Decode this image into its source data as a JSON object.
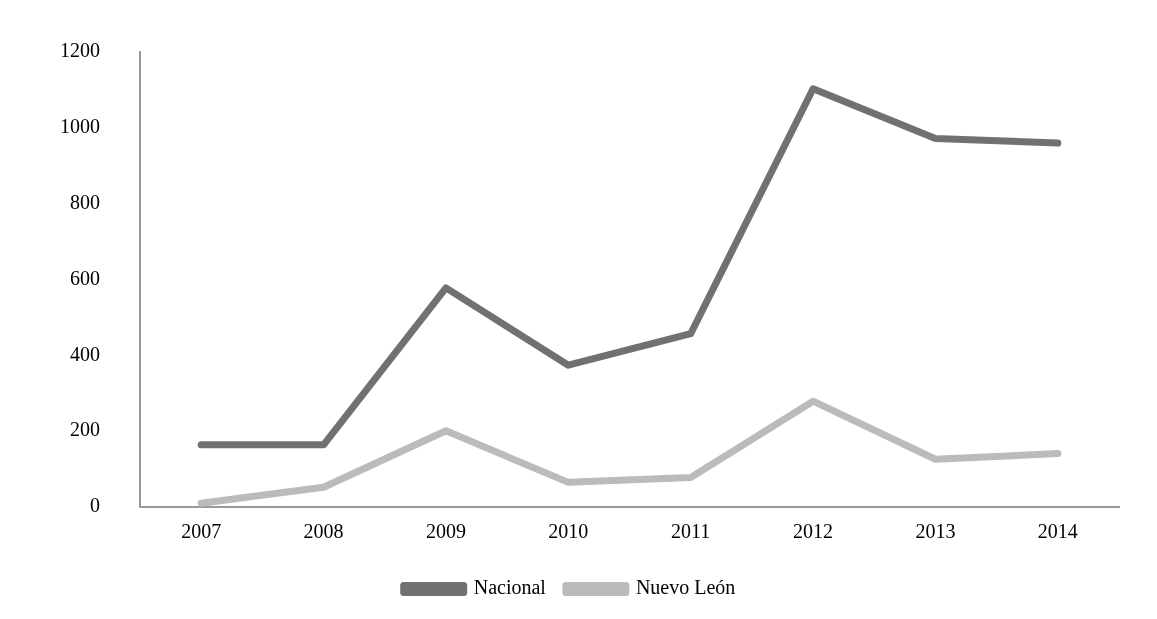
{
  "chart_data": {
    "type": "line",
    "categories": [
      "2007",
      "2008",
      "2009",
      "2010",
      "2011",
      "2012",
      "2013",
      "2014"
    ],
    "series": [
      {
        "name": "Nacional",
        "color": "#717171",
        "values": [
          164,
          164,
          578,
          374,
          457,
          1103,
          972,
          960
        ]
      },
      {
        "name": "Nuevo León",
        "color": "#bbbbbb",
        "values": [
          10,
          52,
          201,
          65,
          78,
          279,
          126,
          141
        ]
      }
    ],
    "ylim": [
      0,
      1200
    ],
    "yticks": [
      0,
      200,
      400,
      600,
      800,
      1000,
      1200
    ],
    "grid": false,
    "legend": "bottom",
    "marker": "none",
    "line_style": "solid"
  }
}
